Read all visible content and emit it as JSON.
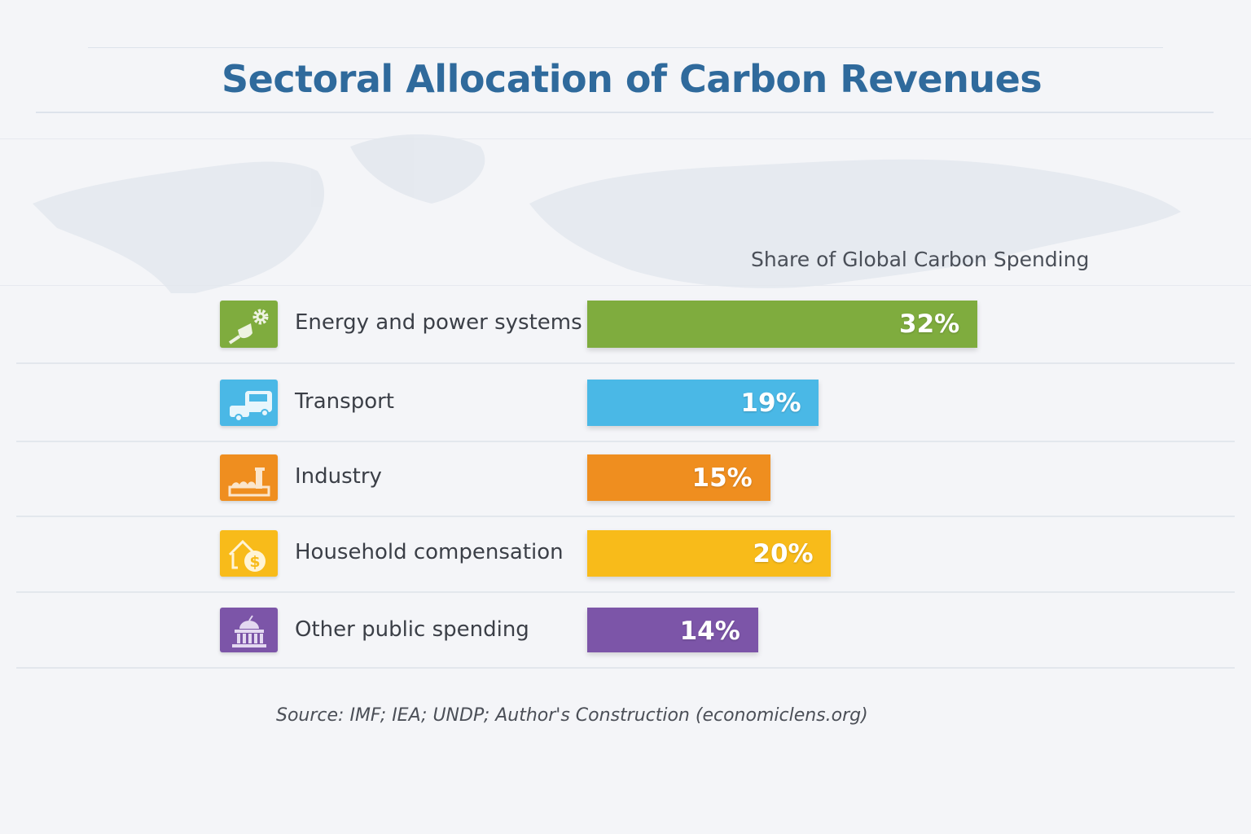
{
  "chart_data": {
    "type": "bar",
    "orientation": "horizontal",
    "title": "Sectoral Allocation of Carbon Revenues",
    "subtitle": "Share of Global Carbon Spending",
    "categories": [
      "Energy and power systems",
      "Transport",
      "Industry",
      "Household compensation",
      "Other public spending"
    ],
    "values": [
      32,
      19,
      15,
      20,
      14
    ],
    "value_labels": [
      "32%",
      "19%",
      "15%",
      "20%",
      "14%"
    ],
    "colors": [
      "#7fac3e",
      "#4ab8e6",
      "#ef8e1f",
      "#f8bb1a",
      "#7c55a8"
    ],
    "icons": [
      "plug-gear-icon",
      "vehicles-icon",
      "factory-icon",
      "house-dollar-icon",
      "government-building-icon"
    ],
    "grid": false,
    "legend": "none",
    "source": "Source: IMF; IEA; UNDP; Author's Construction (economiclens.org)"
  }
}
